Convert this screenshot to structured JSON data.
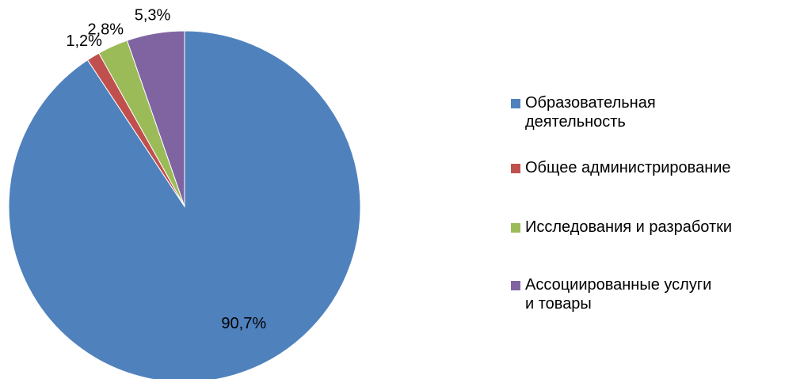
{
  "chart_data": {
    "type": "pie",
    "categories": [
      "Образовательная деятельность",
      "Общее администрирование",
      "Исследования и разработки",
      "Ассоциированные услуги и товары"
    ],
    "values": [
      90.7,
      1.2,
      2.8,
      5.3
    ],
    "value_labels": [
      "90,7%",
      "1,2%",
      "2,8%",
      "5,3%"
    ],
    "colors": [
      "#4f81bd",
      "#c0504d",
      "#9bbb59",
      "#8064a2"
    ],
    "legend": "right"
  }
}
